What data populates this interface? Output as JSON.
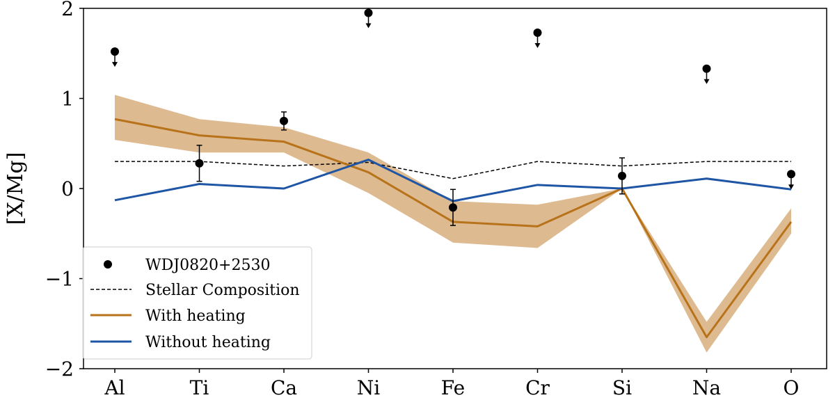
{
  "chart_data": {
    "type": "line",
    "title": "",
    "xlabel": "",
    "ylabel": "[X/Mg]",
    "categories": [
      "Al",
      "Ti",
      "Ca",
      "Ni",
      "Fe",
      "Cr",
      "Si",
      "Na",
      "O"
    ],
    "ylim": [
      -2,
      2
    ],
    "yticks": [
      2,
      1,
      0,
      -1,
      -2
    ],
    "ytick_labels": [
      "2",
      "1",
      "0",
      "−1",
      "−2"
    ],
    "grid": false,
    "legend_position": "lower-left",
    "series": [
      {
        "name": "Stellar Composition",
        "style": "dashed",
        "color": "#000000",
        "values": [
          0.3,
          0.3,
          0.25,
          0.29,
          0.11,
          0.3,
          0.25,
          0.3,
          0.3
        ]
      },
      {
        "name": "With heating",
        "style": "solid",
        "color": "#b8731a",
        "band_color": "#d9b384",
        "values": [
          0.77,
          0.59,
          0.52,
          0.18,
          -0.37,
          -0.42,
          0.0,
          -1.65,
          -0.37
        ],
        "band_upper": [
          1.04,
          0.77,
          0.68,
          0.4,
          -0.14,
          -0.18,
          0.0,
          -1.48,
          -0.22
        ],
        "band_lower": [
          0.54,
          0.4,
          0.4,
          -0.05,
          -0.6,
          -0.66,
          0.0,
          -1.82,
          -0.5
        ]
      },
      {
        "name": "Without heating",
        "style": "solid",
        "color": "#1f55a5",
        "values": [
          -0.13,
          0.05,
          0.0,
          0.32,
          -0.14,
          0.04,
          0.0,
          0.11,
          -0.01
        ]
      }
    ],
    "observations": {
      "name": "WDJ0820+2530",
      "color": "#000000",
      "points": [
        {
          "category": "Al",
          "value": 1.52,
          "upper_limit": true
        },
        {
          "category": "Ti",
          "value": 0.28,
          "error": 0.2
        },
        {
          "category": "Ca",
          "value": 0.75,
          "error": 0.1
        },
        {
          "category": "Ni",
          "value": 1.95,
          "upper_limit": true
        },
        {
          "category": "Fe",
          "value": -0.21,
          "error": 0.2
        },
        {
          "category": "Cr",
          "value": 1.73,
          "upper_limit": true
        },
        {
          "category": "Si",
          "value": 0.14,
          "error": 0.2
        },
        {
          "category": "Na",
          "value": 1.33,
          "upper_limit": true
        },
        {
          "category": "O",
          "value": 0.16,
          "upper_limit": true
        }
      ]
    },
    "legend": [
      "WDJ0820+2530",
      "Stellar Composition",
      "With heating",
      "Without heating"
    ]
  }
}
